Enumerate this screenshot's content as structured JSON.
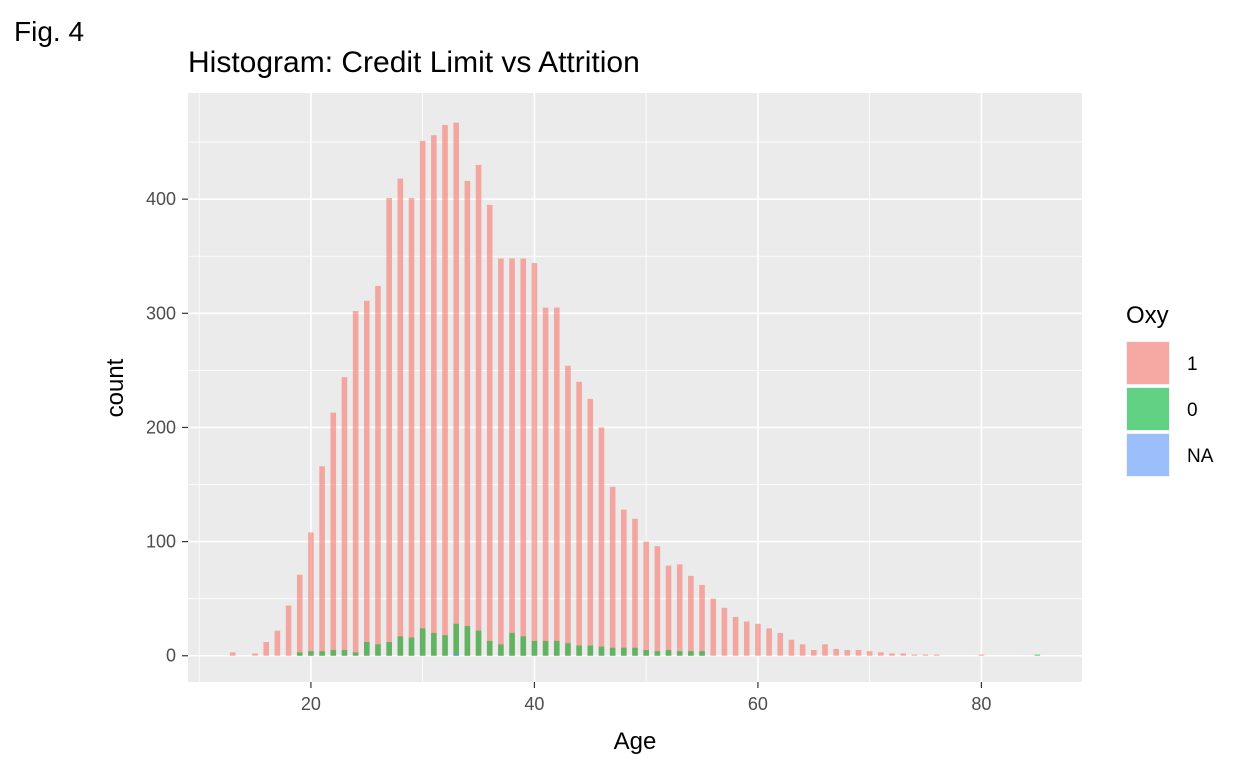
{
  "figure_label": "Fig. 4",
  "chart_data": {
    "type": "bar",
    "title": "Histogram: Credit Limit vs Attrition",
    "xlabel": "Age",
    "ylabel": "count",
    "xlim": [
      9,
      89
    ],
    "ylim": [
      -23,
      493
    ],
    "x_ticks": [
      20,
      40,
      60,
      80
    ],
    "x_tick_labels": [
      "20",
      "40",
      "60",
      "80"
    ],
    "y_ticks": [
      0,
      100,
      200,
      300,
      400
    ],
    "y_tick_labels": [
      "0",
      "100",
      "200",
      "300",
      "400"
    ],
    "grid": true,
    "legend_placement": "right",
    "legend_title": "Oxy",
    "series": [
      {
        "name": "1",
        "color": "#F8766D",
        "x": [
          13,
          15,
          16,
          17,
          18,
          19,
          20,
          21,
          22,
          23,
          24,
          25,
          26,
          27,
          28,
          29,
          30,
          31,
          32,
          33,
          34,
          35,
          36,
          37,
          38,
          39,
          40,
          41,
          42,
          43,
          44,
          45,
          46,
          47,
          48,
          49,
          50,
          51,
          52,
          53,
          54,
          55,
          56,
          57,
          58,
          59,
          60,
          61,
          62,
          63,
          64,
          65,
          66,
          67,
          68,
          69,
          70,
          71,
          72,
          73,
          74,
          75,
          76,
          80
        ],
        "values": [
          3,
          2,
          12,
          22,
          44,
          71,
          108,
          166,
          213,
          244,
          302,
          311,
          324,
          401,
          418,
          401,
          451,
          456,
          465,
          467,
          416,
          430,
          395,
          348,
          348,
          348,
          344,
          305,
          305,
          254,
          240,
          225,
          200,
          148,
          128,
          120,
          100,
          96,
          79,
          80,
          70,
          62,
          50,
          42,
          34,
          30,
          28,
          24,
          20,
          14,
          10,
          5,
          10,
          6,
          5,
          5,
          4,
          3,
          2,
          2,
          1,
          1,
          1,
          1
        ]
      },
      {
        "name": "0",
        "color": "#00BA38",
        "x": [
          19,
          20,
          21,
          22,
          23,
          24,
          25,
          26,
          27,
          28,
          29,
          30,
          31,
          32,
          33,
          34,
          35,
          36,
          37,
          38,
          39,
          40,
          41,
          42,
          43,
          44,
          45,
          46,
          47,
          48,
          49,
          50,
          51,
          52,
          53,
          54,
          55,
          85
        ],
        "values": [
          3,
          4,
          4,
          5,
          5,
          3,
          12,
          10,
          12,
          17,
          16,
          24,
          20,
          18,
          28,
          26,
          22,
          13,
          10,
          20,
          17,
          13,
          13,
          13,
          11,
          9,
          9,
          8,
          7,
          7,
          7,
          5,
          4,
          5,
          4,
          4,
          4,
          1
        ]
      },
      {
        "name": "NA",
        "color": "#619CFF",
        "x": [
          33
        ],
        "values": [
          2
        ]
      }
    ]
  }
}
